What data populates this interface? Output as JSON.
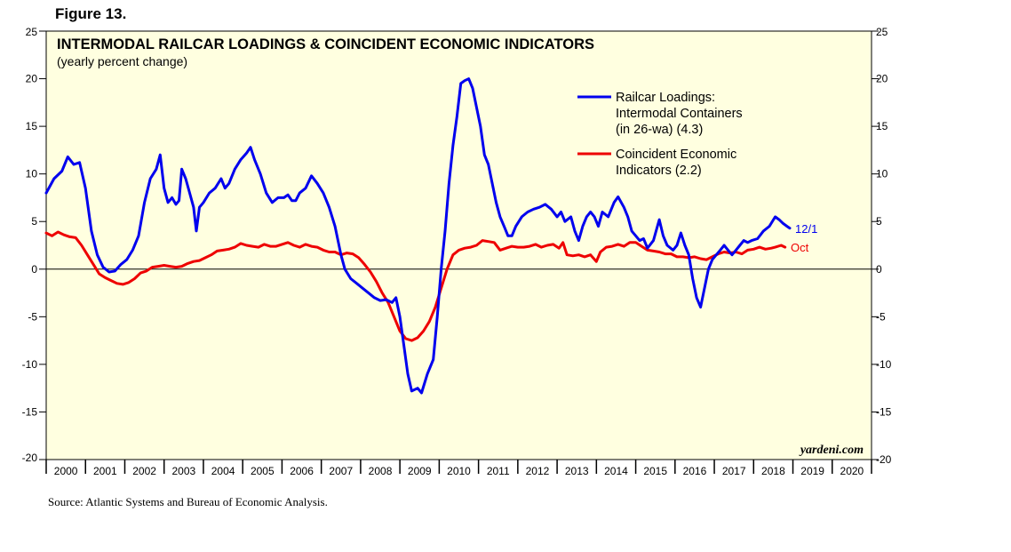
{
  "figure_label": "Figure 13.",
  "source": "Source: Atlantic Systems and Bureau of Economic Analysis.",
  "watermark": "yardeni.com",
  "chart_data": {
    "type": "line",
    "title": "INTERMODAL RAILCAR LOADINGS & COINCIDENT ECONOMIC INDICATORS",
    "subtitle": "(yearly percent change)",
    "xlabel": "",
    "ylabel": "",
    "xlim": [
      2000,
      2021
    ],
    "ylim": [
      -20,
      25
    ],
    "yticks": [
      25,
      20,
      15,
      10,
      5,
      0,
      -5,
      -10,
      -15,
      -20
    ],
    "ytick_labels": [
      "25",
      "20",
      "15",
      "10",
      "5",
      "0",
      "-5",
      "-10",
      "-15",
      "-20"
    ],
    "xtick_labels": [
      "2000",
      "2001",
      "2002",
      "2003",
      "2004",
      "2005",
      "2006",
      "2007",
      "2008",
      "2009",
      "2010",
      "2011",
      "2012",
      "2013",
      "2014",
      "2015",
      "2016",
      "2017",
      "2018",
      "2019",
      "2020"
    ],
    "zero_line": true,
    "series": [
      {
        "name": "Railcar Loadings: Intermodal Containers (in 26-wa) (4.3)",
        "legend_lines": [
          "Railcar Loadings:",
          "Intermodal Containers",
          "(in 26-wa) (4.3)"
        ],
        "color": "#0000ee",
        "end_label": "12/1",
        "points": [
          [
            2000.0,
            8.0
          ],
          [
            2000.2,
            9.5
          ],
          [
            2000.4,
            10.3
          ],
          [
            2000.55,
            11.8
          ],
          [
            2000.7,
            11.0
          ],
          [
            2000.85,
            11.2
          ],
          [
            2001.0,
            8.5
          ],
          [
            2001.15,
            4.0
          ],
          [
            2001.3,
            1.5
          ],
          [
            2001.45,
            0.2
          ],
          [
            2001.6,
            -0.3
          ],
          [
            2001.75,
            -0.2
          ],
          [
            2001.9,
            0.5
          ],
          [
            2002.05,
            1.0
          ],
          [
            2002.2,
            2.0
          ],
          [
            2002.35,
            3.5
          ],
          [
            2002.5,
            7.0
          ],
          [
            2002.65,
            9.5
          ],
          [
            2002.8,
            10.5
          ],
          [
            2002.9,
            12.0
          ],
          [
            2003.0,
            8.5
          ],
          [
            2003.1,
            7.0
          ],
          [
            2003.2,
            7.5
          ],
          [
            2003.3,
            6.8
          ],
          [
            2003.38,
            7.2
          ],
          [
            2003.45,
            10.5
          ],
          [
            2003.55,
            9.5
          ],
          [
            2003.65,
            8.0
          ],
          [
            2003.75,
            6.5
          ],
          [
            2003.82,
            4.0
          ],
          [
            2003.9,
            6.5
          ],
          [
            2004.0,
            7.0
          ],
          [
            2004.15,
            8.0
          ],
          [
            2004.3,
            8.5
          ],
          [
            2004.45,
            9.5
          ],
          [
            2004.55,
            8.5
          ],
          [
            2004.65,
            9.0
          ],
          [
            2004.8,
            10.5
          ],
          [
            2004.95,
            11.5
          ],
          [
            2005.1,
            12.2
          ],
          [
            2005.2,
            12.8
          ],
          [
            2005.3,
            11.5
          ],
          [
            2005.45,
            10.0
          ],
          [
            2005.6,
            8.0
          ],
          [
            2005.75,
            7.0
          ],
          [
            2005.9,
            7.5
          ],
          [
            2006.05,
            7.5
          ],
          [
            2006.15,
            7.8
          ],
          [
            2006.25,
            7.2
          ],
          [
            2006.35,
            7.2
          ],
          [
            2006.45,
            8.0
          ],
          [
            2006.6,
            8.5
          ],
          [
            2006.75,
            9.8
          ],
          [
            2006.9,
            9.0
          ],
          [
            2007.05,
            8.0
          ],
          [
            2007.2,
            6.5
          ],
          [
            2007.35,
            4.5
          ],
          [
            2007.5,
            1.5
          ],
          [
            2007.6,
            0.0
          ],
          [
            2007.75,
            -1.0
          ],
          [
            2007.9,
            -1.5
          ],
          [
            2008.05,
            -2.0
          ],
          [
            2008.2,
            -2.5
          ],
          [
            2008.35,
            -3.0
          ],
          [
            2008.5,
            -3.3
          ],
          [
            2008.65,
            -3.2
          ],
          [
            2008.8,
            -3.5
          ],
          [
            2008.9,
            -3.0
          ],
          [
            2009.0,
            -5.0
          ],
          [
            2009.1,
            -8.0
          ],
          [
            2009.2,
            -11.0
          ],
          [
            2009.3,
            -12.8
          ],
          [
            2009.45,
            -12.5
          ],
          [
            2009.55,
            -13.0
          ],
          [
            2009.7,
            -11.0
          ],
          [
            2009.85,
            -9.5
          ],
          [
            2009.95,
            -5.0
          ],
          [
            2010.05,
            0.0
          ],
          [
            2010.15,
            4.0
          ],
          [
            2010.25,
            9.0
          ],
          [
            2010.35,
            13.0
          ],
          [
            2010.45,
            16.0
          ],
          [
            2010.55,
            19.5
          ],
          [
            2010.65,
            19.8
          ],
          [
            2010.75,
            20.0
          ],
          [
            2010.85,
            19.0
          ],
          [
            2010.95,
            17.0
          ],
          [
            2011.05,
            15.0
          ],
          [
            2011.15,
            12.0
          ],
          [
            2011.25,
            11.0
          ],
          [
            2011.35,
            9.0
          ],
          [
            2011.45,
            7.0
          ],
          [
            2011.55,
            5.5
          ],
          [
            2011.65,
            4.5
          ],
          [
            2011.75,
            3.5
          ],
          [
            2011.85,
            3.5
          ],
          [
            2011.95,
            4.5
          ],
          [
            2012.1,
            5.5
          ],
          [
            2012.25,
            6.0
          ],
          [
            2012.4,
            6.3
          ],
          [
            2012.55,
            6.5
          ],
          [
            2012.7,
            6.8
          ],
          [
            2012.85,
            6.3
          ],
          [
            2013.0,
            5.5
          ],
          [
            2013.1,
            6.0
          ],
          [
            2013.2,
            5.0
          ],
          [
            2013.35,
            5.5
          ],
          [
            2013.45,
            4.0
          ],
          [
            2013.55,
            3.0
          ],
          [
            2013.65,
            4.5
          ],
          [
            2013.75,
            5.5
          ],
          [
            2013.85,
            6.0
          ],
          [
            2013.95,
            5.5
          ],
          [
            2014.05,
            4.5
          ],
          [
            2014.15,
            6.0
          ],
          [
            2014.3,
            5.5
          ],
          [
            2014.45,
            7.0
          ],
          [
            2014.55,
            7.6
          ],
          [
            2014.7,
            6.5
          ],
          [
            2014.8,
            5.5
          ],
          [
            2014.9,
            4.0
          ],
          [
            2015.0,
            3.5
          ],
          [
            2015.1,
            3.0
          ],
          [
            2015.2,
            3.2
          ],
          [
            2015.3,
            2.2
          ],
          [
            2015.45,
            3.0
          ],
          [
            2015.6,
            5.2
          ],
          [
            2015.7,
            3.5
          ],
          [
            2015.8,
            2.5
          ],
          [
            2015.95,
            2.0
          ],
          [
            2016.05,
            2.5
          ],
          [
            2016.15,
            3.8
          ],
          [
            2016.25,
            2.5
          ],
          [
            2016.35,
            1.5
          ],
          [
            2016.45,
            -1.0
          ],
          [
            2016.55,
            -3.0
          ],
          [
            2016.65,
            -4.0
          ],
          [
            2016.75,
            -2.0
          ],
          [
            2016.85,
            0.0
          ],
          [
            2016.95,
            1.0
          ],
          [
            2017.05,
            1.5
          ],
          [
            2017.15,
            2.0
          ],
          [
            2017.25,
            2.5
          ],
          [
            2017.35,
            2.0
          ],
          [
            2017.45,
            1.5
          ],
          [
            2017.55,
            2.0
          ],
          [
            2017.65,
            2.5
          ],
          [
            2017.75,
            3.0
          ],
          [
            2017.85,
            2.8
          ],
          [
            2017.95,
            3.0
          ],
          [
            2018.1,
            3.2
          ],
          [
            2018.25,
            4.0
          ],
          [
            2018.4,
            4.5
          ],
          [
            2018.55,
            5.5
          ],
          [
            2018.65,
            5.2
          ],
          [
            2018.75,
            4.8
          ],
          [
            2018.85,
            4.5
          ],
          [
            2018.92,
            4.3
          ]
        ]
      },
      {
        "name": "Coincident Economic Indicators (2.2)",
        "legend_lines": [
          "Coincident Economic",
          "Indicators (2.2)"
        ],
        "color": "#ee0000",
        "end_label": "Oct",
        "points": [
          [
            2000.0,
            3.8
          ],
          [
            2000.15,
            3.5
          ],
          [
            2000.3,
            3.9
          ],
          [
            2000.45,
            3.6
          ],
          [
            2000.6,
            3.4
          ],
          [
            2000.75,
            3.3
          ],
          [
            2000.9,
            2.5
          ],
          [
            2001.05,
            1.5
          ],
          [
            2001.2,
            0.5
          ],
          [
            2001.35,
            -0.5
          ],
          [
            2001.5,
            -0.9
          ],
          [
            2001.65,
            -1.2
          ],
          [
            2001.8,
            -1.5
          ],
          [
            2001.95,
            -1.6
          ],
          [
            2002.1,
            -1.4
          ],
          [
            2002.25,
            -1.0
          ],
          [
            2002.4,
            -0.4
          ],
          [
            2002.55,
            -0.2
          ],
          [
            2002.7,
            0.2
          ],
          [
            2002.85,
            0.3
          ],
          [
            2003.0,
            0.4
          ],
          [
            2003.15,
            0.3
          ],
          [
            2003.3,
            0.2
          ],
          [
            2003.45,
            0.3
          ],
          [
            2003.6,
            0.6
          ],
          [
            2003.75,
            0.8
          ],
          [
            2003.9,
            0.9
          ],
          [
            2004.05,
            1.2
          ],
          [
            2004.2,
            1.5
          ],
          [
            2004.35,
            1.9
          ],
          [
            2004.5,
            2.0
          ],
          [
            2004.65,
            2.1
          ],
          [
            2004.8,
            2.3
          ],
          [
            2004.95,
            2.7
          ],
          [
            2005.1,
            2.5
          ],
          [
            2005.25,
            2.4
          ],
          [
            2005.4,
            2.3
          ],
          [
            2005.55,
            2.6
          ],
          [
            2005.7,
            2.4
          ],
          [
            2005.85,
            2.4
          ],
          [
            2006.0,
            2.6
          ],
          [
            2006.15,
            2.8
          ],
          [
            2006.3,
            2.5
          ],
          [
            2006.45,
            2.3
          ],
          [
            2006.6,
            2.6
          ],
          [
            2006.75,
            2.4
          ],
          [
            2006.9,
            2.3
          ],
          [
            2007.05,
            2.0
          ],
          [
            2007.2,
            1.8
          ],
          [
            2007.35,
            1.8
          ],
          [
            2007.5,
            1.5
          ],
          [
            2007.65,
            1.7
          ],
          [
            2007.8,
            1.6
          ],
          [
            2007.95,
            1.2
          ],
          [
            2008.1,
            0.5
          ],
          [
            2008.25,
            -0.3
          ],
          [
            2008.4,
            -1.3
          ],
          [
            2008.55,
            -2.5
          ],
          [
            2008.7,
            -3.5
          ],
          [
            2008.85,
            -5.0
          ],
          [
            2009.0,
            -6.5
          ],
          [
            2009.15,
            -7.3
          ],
          [
            2009.3,
            -7.5
          ],
          [
            2009.45,
            -7.2
          ],
          [
            2009.6,
            -6.5
          ],
          [
            2009.75,
            -5.5
          ],
          [
            2009.9,
            -4.0
          ],
          [
            2010.05,
            -2.0
          ],
          [
            2010.2,
            0.0
          ],
          [
            2010.35,
            1.5
          ],
          [
            2010.5,
            2.0
          ],
          [
            2010.65,
            2.2
          ],
          [
            2010.8,
            2.3
          ],
          [
            2010.95,
            2.5
          ],
          [
            2011.1,
            3.0
          ],
          [
            2011.25,
            2.9
          ],
          [
            2011.4,
            2.8
          ],
          [
            2011.55,
            2.0
          ],
          [
            2011.7,
            2.2
          ],
          [
            2011.85,
            2.4
          ],
          [
            2012.0,
            2.3
          ],
          [
            2012.15,
            2.3
          ],
          [
            2012.3,
            2.4
          ],
          [
            2012.45,
            2.6
          ],
          [
            2012.6,
            2.3
          ],
          [
            2012.75,
            2.5
          ],
          [
            2012.9,
            2.6
          ],
          [
            2013.05,
            2.2
          ],
          [
            2013.15,
            2.8
          ],
          [
            2013.25,
            1.5
          ],
          [
            2013.4,
            1.4
          ],
          [
            2013.55,
            1.5
          ],
          [
            2013.7,
            1.3
          ],
          [
            2013.85,
            1.5
          ],
          [
            2014.0,
            0.8
          ],
          [
            2014.1,
            1.8
          ],
          [
            2014.25,
            2.3
          ],
          [
            2014.4,
            2.4
          ],
          [
            2014.55,
            2.6
          ],
          [
            2014.7,
            2.4
          ],
          [
            2014.85,
            2.8
          ],
          [
            2015.0,
            2.8
          ],
          [
            2015.15,
            2.4
          ],
          [
            2015.3,
            2.0
          ],
          [
            2015.45,
            1.9
          ],
          [
            2015.6,
            1.8
          ],
          [
            2015.75,
            1.6
          ],
          [
            2015.9,
            1.6
          ],
          [
            2016.05,
            1.3
          ],
          [
            2016.2,
            1.3
          ],
          [
            2016.35,
            1.2
          ],
          [
            2016.5,
            1.3
          ],
          [
            2016.65,
            1.1
          ],
          [
            2016.8,
            1.0
          ],
          [
            2016.95,
            1.3
          ],
          [
            2017.1,
            1.6
          ],
          [
            2017.25,
            1.8
          ],
          [
            2017.4,
            1.7
          ],
          [
            2017.55,
            1.8
          ],
          [
            2017.7,
            1.6
          ],
          [
            2017.85,
            2.0
          ],
          [
            2018.0,
            2.1
          ],
          [
            2018.15,
            2.3
          ],
          [
            2018.3,
            2.1
          ],
          [
            2018.45,
            2.2
          ],
          [
            2018.55,
            2.3
          ],
          [
            2018.7,
            2.5
          ],
          [
            2018.8,
            2.3
          ]
        ]
      }
    ]
  }
}
